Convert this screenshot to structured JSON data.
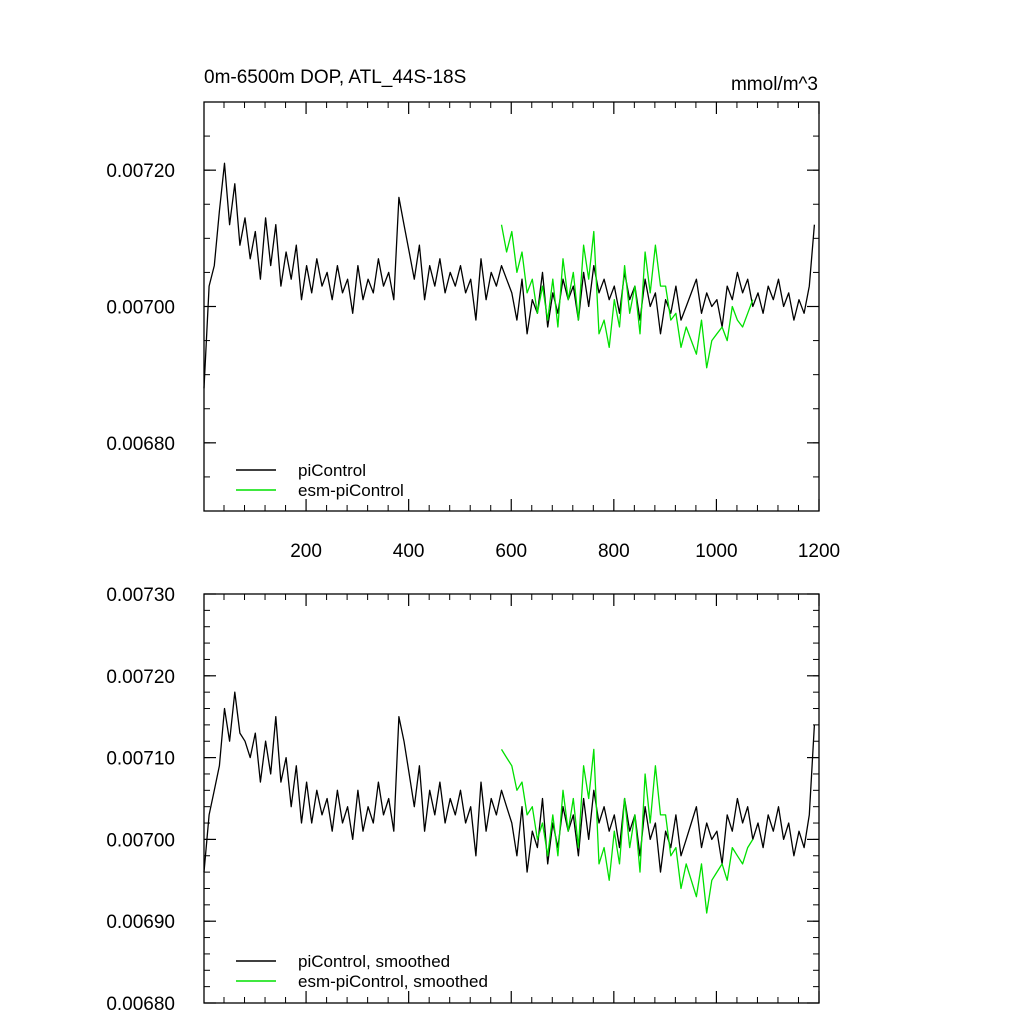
{
  "chart_data": [
    {
      "type": "line",
      "title": "0m-6500m DOP, ATL_44S-18S",
      "units": "mmol/m^3",
      "xlim": [
        1,
        1200
      ],
      "ylim": [
        0.0067,
        0.0073
      ],
      "x_ticks": [
        200,
        400,
        600,
        800,
        1000,
        1200
      ],
      "x_tick_labels": [
        "200",
        "400",
        "600",
        "800",
        "1000",
        "1200"
      ],
      "y_ticks": [
        0.0068,
        0.007,
        0.0072
      ],
      "y_tick_labels": [
        "0.00680",
        "0.00700",
        "0.00720"
      ],
      "legend": "bottom-left",
      "series": [
        {
          "name": "piControl",
          "color": "#000000",
          "x_start": 1,
          "x_step": 10,
          "values": [
            0.00688,
            0.00703,
            0.00706,
            0.00714,
            0.00721,
            0.00712,
            0.00718,
            0.00709,
            0.00713,
            0.00707,
            0.00711,
            0.00704,
            0.00713,
            0.00706,
            0.00712,
            0.00703,
            0.00708,
            0.00704,
            0.00709,
            0.00701,
            0.00706,
            0.00702,
            0.00707,
            0.00703,
            0.00705,
            0.00701,
            0.00706,
            0.00702,
            0.00704,
            0.00699,
            0.00706,
            0.00701,
            0.00704,
            0.00702,
            0.00707,
            0.00703,
            0.00705,
            0.00701,
            0.00716,
            0.00712,
            0.00708,
            0.00704,
            0.00709,
            0.00701,
            0.00706,
            0.00703,
            0.00707,
            0.00702,
            0.00705,
            0.00703,
            0.00706,
            0.00702,
            0.00704,
            0.00698,
            0.00707,
            0.00701,
            0.00705,
            0.00703,
            0.00706,
            0.00704,
            0.00702,
            0.00698,
            0.00704,
            0.00696,
            0.00701,
            0.00699,
            0.00705,
            0.00697,
            0.00702,
            0.00699,
            0.00704,
            0.00701,
            0.00703,
            0.00698,
            0.00705,
            0.007,
            0.00706,
            0.00702,
            0.00704,
            0.00701,
            0.00703,
            0.00699,
            0.00705,
            0.00701,
            0.00703,
            0.00698,
            0.00704,
            0.007,
            0.00702,
            0.00696,
            0.00701,
            0.00699,
            0.00703,
            0.00698,
            0.007,
            0.00702,
            0.00704,
            0.00699,
            0.00702,
            0.007,
            0.00701,
            0.00697,
            0.00703,
            0.00701,
            0.00705,
            0.00702,
            0.00704,
            0.007,
            0.00702,
            0.00699,
            0.00703,
            0.00701,
            0.00704,
            0.007,
            0.00702,
            0.00698,
            0.00701,
            0.00699,
            0.00703,
            0.00712
          ]
        },
        {
          "name": "esm-piControl",
          "color": "#00e000",
          "x_start": 581,
          "x_step": 10,
          "values": [
            0.00712,
            0.00708,
            0.00711,
            0.00705,
            0.00708,
            0.00702,
            0.00704,
            0.00699,
            0.00703,
            0.00698,
            0.00704,
            0.00697,
            0.00707,
            0.00701,
            0.00705,
            0.00698,
            0.00709,
            0.00704,
            0.00711,
            0.00696,
            0.00698,
            0.00694,
            0.00701,
            0.00697,
            0.00706,
            0.00699,
            0.00703,
            0.00696,
            0.00708,
            0.00702,
            0.00709,
            0.00703,
            0.00703,
            0.00698,
            0.00699,
            0.00694,
            0.00697,
            0.00695,
            0.00693,
            0.00698,
            0.00691,
            0.00695,
            0.00696,
            0.00697,
            0.00695,
            0.007,
            0.00698,
            0.00697,
            0.00699,
            0.00701
          ]
        }
      ]
    },
    {
      "type": "line",
      "xlim": [
        1,
        1200
      ],
      "ylim": [
        0.0068,
        0.0073
      ],
      "x_ticks": [
        200,
        400,
        600,
        800,
        1000,
        1200
      ],
      "y_ticks": [
        0.0068,
        0.0069,
        0.007,
        0.0071,
        0.0072,
        0.0073
      ],
      "y_tick_labels": [
        "0.00680",
        "0.00690",
        "0.00700",
        "0.00710",
        "0.00720",
        "0.00730"
      ],
      "legend": "bottom-left",
      "series": [
        {
          "name": "piControl, smoothed",
          "color": "#000000",
          "x_start": 1,
          "x_step": 10,
          "values": [
            0.00696,
            0.00703,
            0.00706,
            0.00709,
            0.00716,
            0.00712,
            0.00718,
            0.00713,
            0.00712,
            0.0071,
            0.00713,
            0.00707,
            0.00712,
            0.00708,
            0.00715,
            0.00707,
            0.0071,
            0.00704,
            0.00709,
            0.00702,
            0.00707,
            0.00702,
            0.00706,
            0.00703,
            0.00705,
            0.00701,
            0.00706,
            0.00702,
            0.00704,
            0.007,
            0.00706,
            0.00701,
            0.00704,
            0.00702,
            0.00707,
            0.00703,
            0.00705,
            0.00701,
            0.00715,
            0.00712,
            0.00708,
            0.00704,
            0.00709,
            0.00701,
            0.00706,
            0.00703,
            0.00707,
            0.00702,
            0.00705,
            0.00703,
            0.00706,
            0.00702,
            0.00704,
            0.00698,
            0.00707,
            0.00701,
            0.00705,
            0.00703,
            0.00706,
            0.00704,
            0.00702,
            0.00698,
            0.00704,
            0.00696,
            0.00701,
            0.00699,
            0.00705,
            0.00697,
            0.00702,
            0.00699,
            0.00704,
            0.00701,
            0.00703,
            0.00698,
            0.00705,
            0.007,
            0.00706,
            0.00702,
            0.00704,
            0.00701,
            0.00703,
            0.00699,
            0.00705,
            0.00701,
            0.00703,
            0.00698,
            0.00704,
            0.007,
            0.00702,
            0.00696,
            0.00701,
            0.00699,
            0.00703,
            0.00698,
            0.007,
            0.00702,
            0.00704,
            0.00699,
            0.00702,
            0.007,
            0.00701,
            0.00697,
            0.00703,
            0.00701,
            0.00705,
            0.00702,
            0.00704,
            0.007,
            0.00702,
            0.00699,
            0.00703,
            0.00701,
            0.00704,
            0.007,
            0.00702,
            0.00698,
            0.00701,
            0.00699,
            0.00703,
            0.00714
          ]
        },
        {
          "name": "esm-piControl, smoothed",
          "color": "#00e000",
          "x_start": 581,
          "x_step": 10,
          "values": [
            0.00711,
            0.0071,
            0.00709,
            0.00706,
            0.00707,
            0.00703,
            0.00704,
            0.007,
            0.00702,
            0.00698,
            0.00703,
            0.00698,
            0.00706,
            0.00701,
            0.00705,
            0.00699,
            0.00709,
            0.00705,
            0.00711,
            0.00697,
            0.00699,
            0.00695,
            0.00701,
            0.00697,
            0.00705,
            0.00699,
            0.00703,
            0.00696,
            0.00708,
            0.00702,
            0.00709,
            0.00703,
            0.00703,
            0.00698,
            0.00699,
            0.00694,
            0.00697,
            0.00695,
            0.00693,
            0.00697,
            0.00691,
            0.00695,
            0.00696,
            0.00697,
            0.00695,
            0.00699,
            0.00698,
            0.00697,
            0.00699,
            0.007
          ]
        }
      ]
    }
  ]
}
